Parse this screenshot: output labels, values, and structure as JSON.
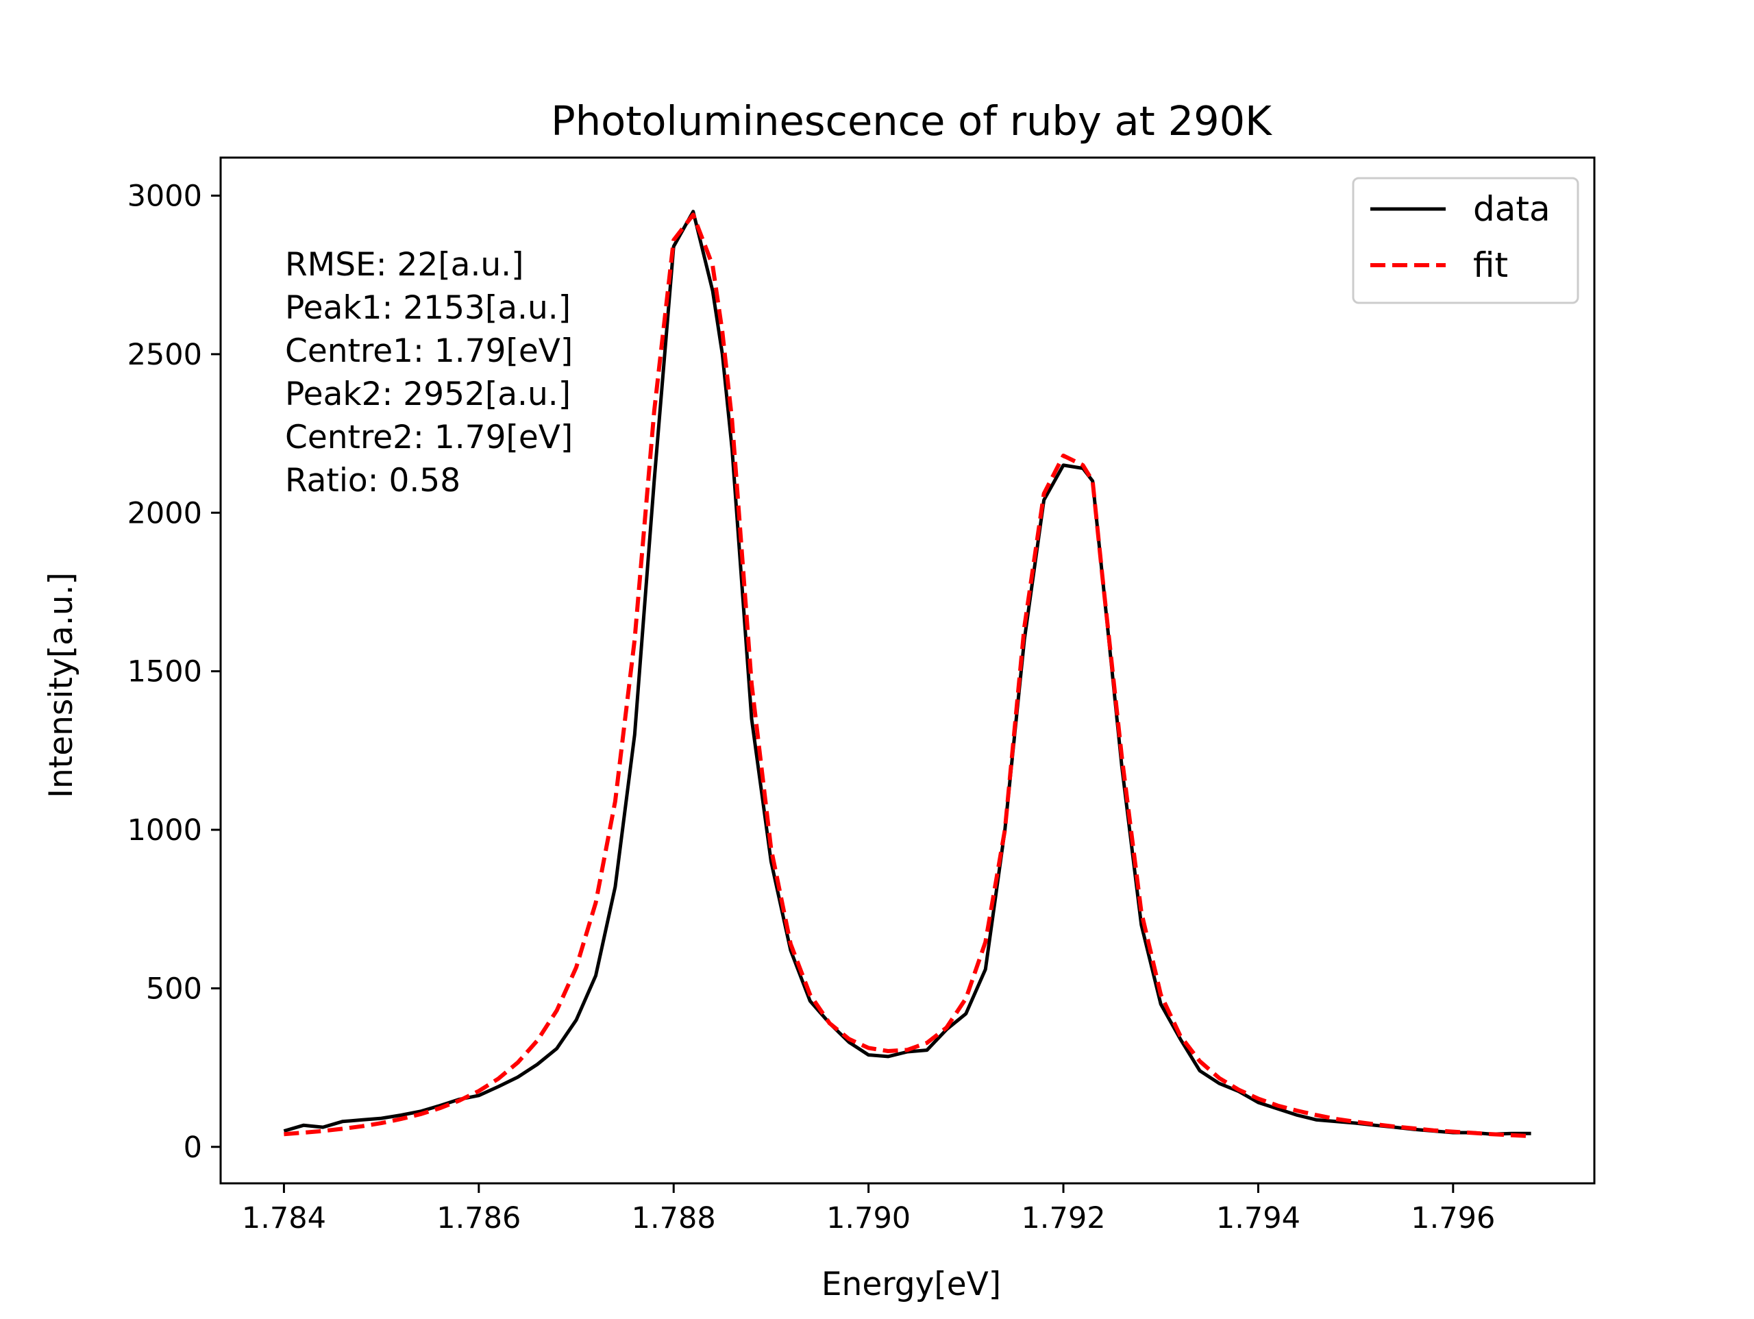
{
  "chart_data": {
    "type": "line",
    "title": "Photoluminescence of ruby at 290K",
    "xlabel": "Energy[eV]",
    "ylabel": "Intensity[a.u.]",
    "xlim": [
      1.78335,
      1.79745
    ],
    "ylim": [
      -115,
      3120
    ],
    "xticks": [
      1.784,
      1.786,
      1.788,
      1.79,
      1.792,
      1.794,
      1.796
    ],
    "xtick_labels": [
      "1.784",
      "1.786",
      "1.788",
      "1.790",
      "1.792",
      "1.794",
      "1.796"
    ],
    "yticks": [
      0,
      500,
      1000,
      1500,
      2000,
      2500,
      3000
    ],
    "ytick_labels": [
      "0",
      "500",
      "1000",
      "1500",
      "2000",
      "2500",
      "3000"
    ],
    "grid": false,
    "legend": {
      "position": "top-right",
      "entries": [
        "data",
        "fit"
      ]
    },
    "annotations": [
      "RMSE: 22[a.u.]",
      "Peak1: 2153[a.u.]",
      "Centre1: 1.79[eV]",
      "Peak2: 2952[a.u.]",
      "Centre2: 1.79[eV]",
      "Ratio: 0.58"
    ],
    "series": [
      {
        "name": "data",
        "color": "#000000",
        "style": "solid",
        "x": [
          1.784,
          1.7842,
          1.7844,
          1.7846,
          1.7848,
          1.785,
          1.7852,
          1.7854,
          1.7856,
          1.7858,
          1.786,
          1.7862,
          1.7864,
          1.7866,
          1.7868,
          1.787,
          1.7872,
          1.7874,
          1.7876,
          1.7878,
          1.788,
          1.7882,
          1.7884,
          1.7885,
          1.7886,
          1.7888,
          1.789,
          1.7892,
          1.7894,
          1.7896,
          1.7898,
          1.79,
          1.7902,
          1.7904,
          1.7906,
          1.7908,
          1.791,
          1.7912,
          1.7914,
          1.7916,
          1.7918,
          1.792,
          1.7922,
          1.7923,
          1.7924,
          1.7926,
          1.7928,
          1.793,
          1.7932,
          1.7934,
          1.7936,
          1.7938,
          1.794,
          1.7942,
          1.7944,
          1.7946,
          1.7948,
          1.795,
          1.7952,
          1.7954,
          1.7956,
          1.7958,
          1.796,
          1.7962,
          1.7964,
          1.7966,
          1.7968
        ],
        "y": [
          50,
          68,
          62,
          80,
          85,
          90,
          100,
          112,
          130,
          150,
          162,
          190,
          220,
          260,
          310,
          400,
          540,
          820,
          1300,
          2100,
          2840,
          2950,
          2700,
          2500,
          2200,
          1350,
          900,
          620,
          460,
          390,
          330,
          290,
          285,
          300,
          305,
          370,
          420,
          560,
          1000,
          1600,
          2040,
          2150,
          2140,
          2100,
          1800,
          1200,
          700,
          450,
          340,
          240,
          200,
          175,
          140,
          120,
          100,
          85,
          80,
          75,
          68,
          62,
          55,
          50,
          45,
          45,
          40,
          42,
          42
        ]
      },
      {
        "name": "fit",
        "color": "#ff0000",
        "style": "dashed",
        "x": [
          1.784,
          1.7842,
          1.7844,
          1.7846,
          1.7848,
          1.785,
          1.7852,
          1.7854,
          1.7856,
          1.7858,
          1.786,
          1.7862,
          1.7864,
          1.7866,
          1.7868,
          1.787,
          1.7872,
          1.7874,
          1.7876,
          1.7878,
          1.788,
          1.7882,
          1.7884,
          1.7885,
          1.7886,
          1.7888,
          1.789,
          1.7892,
          1.7894,
          1.7896,
          1.7898,
          1.79,
          1.7902,
          1.7904,
          1.7906,
          1.7908,
          1.791,
          1.7912,
          1.7914,
          1.7916,
          1.7918,
          1.792,
          1.7922,
          1.7923,
          1.7924,
          1.7926,
          1.7928,
          1.793,
          1.7932,
          1.7934,
          1.7936,
          1.7938,
          1.794,
          1.7942,
          1.7944,
          1.7946,
          1.7948,
          1.795,
          1.7952,
          1.7954,
          1.7956,
          1.7958,
          1.796,
          1.7962,
          1.7964,
          1.7966,
          1.7968
        ],
        "y": [
          40,
          45,
          50,
          57,
          65,
          75,
          88,
          103,
          122,
          146,
          176,
          215,
          266,
          335,
          430,
          566,
          770,
          1090,
          1600,
          2320,
          2860,
          2940,
          2780,
          2570,
          2290,
          1460,
          940,
          640,
          480,
          390,
          340,
          312,
          302,
          306,
          328,
          376,
          468,
          646,
          1000,
          1640,
          2060,
          2180,
          2150,
          2100,
          1800,
          1230,
          740,
          480,
          350,
          270,
          217,
          180,
          152,
          130,
          114,
          100,
          88,
          79,
          71,
          64,
          58,
          52,
          48,
          44,
          40,
          37,
          34
        ]
      }
    ]
  }
}
